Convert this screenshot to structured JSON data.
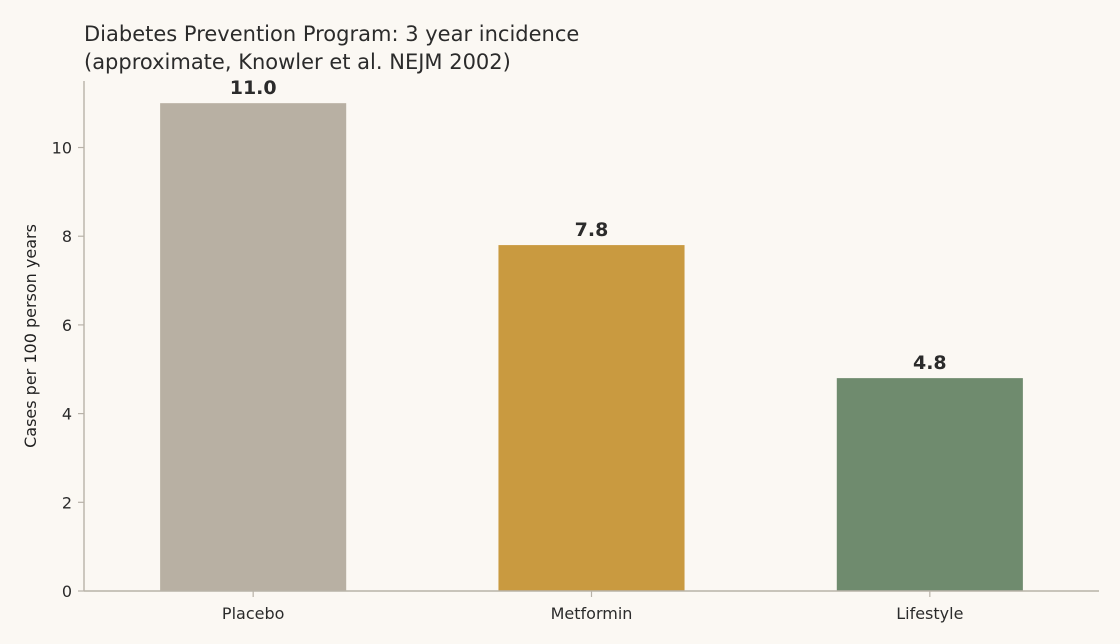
{
  "chart_data": {
    "type": "bar",
    "title": "Diabetes Prevention Program: 3 year incidence (approximate, Knowler et al. NEJM 2002)",
    "title_lines": [
      "Diabetes Prevention Program: 3 year incidence",
      "(approximate, Knowler et al. NEJM 2002)"
    ],
    "xlabel": "",
    "ylabel": "Cases per 100 person years",
    "categories": [
      "Placebo",
      "Metformin",
      "Lifestyle"
    ],
    "values": [
      11.0,
      7.8,
      4.8
    ],
    "value_labels": [
      "11.0",
      "7.8",
      "4.8"
    ],
    "colors": [
      "#b8b0a3",
      "#c99a40",
      "#6f8b6e"
    ],
    "ylim": [
      0,
      11.5
    ],
    "yticks": [
      0,
      2,
      4,
      6,
      8,
      10
    ],
    "grid": false,
    "legend": "none"
  },
  "style": {
    "background": "#fbf8f3",
    "axis_color": "#b8b2a8",
    "text_color": "#2b2b2b"
  }
}
